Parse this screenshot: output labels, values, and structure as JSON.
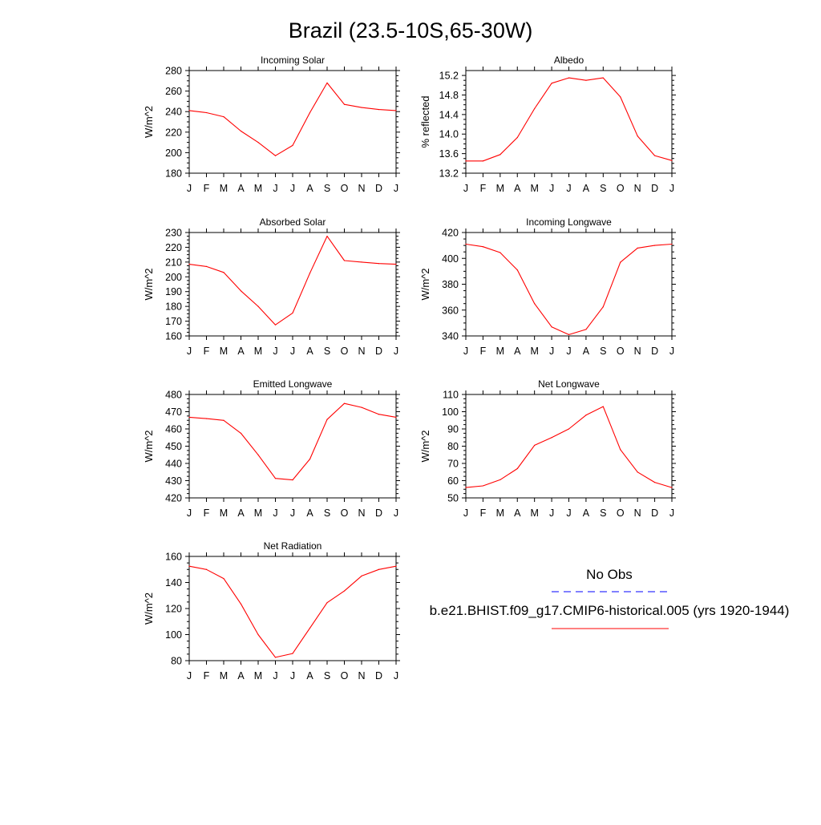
{
  "title": "Brazil (23.5-10S,65-30W)",
  "colors": {
    "model": "#ff0000",
    "obs": "#0000ff",
    "axis": "#000000"
  },
  "legend": {
    "obs_label": "No Obs",
    "model_label": "b.e21.BHIST.f09_g17.CMIP6-historical.005 (yrs 1920-1944)"
  },
  "chart_data": [
    {
      "type": "line",
      "title": "Incoming Solar",
      "xlabel": "",
      "ylabel": "W/m^2",
      "categories": [
        "J",
        "F",
        "M",
        "A",
        "M",
        "J",
        "J",
        "A",
        "S",
        "O",
        "N",
        "D",
        "J"
      ],
      "ylim": [
        180,
        280
      ],
      "yticks": [
        180,
        200,
        220,
        240,
        260,
        280
      ],
      "ytick_labels": [
        "180",
        "200",
        "220",
        "240",
        "260",
        "280"
      ],
      "series": [
        {
          "values": [
            241,
            239,
            235,
            221,
            210,
            197,
            207,
            239,
            268,
            247,
            244,
            242,
            241
          ]
        }
      ]
    },
    {
      "type": "line",
      "title": "Albedo",
      "xlabel": "",
      "ylabel": "% reflected",
      "categories": [
        "J",
        "F",
        "M",
        "A",
        "M",
        "J",
        "J",
        "A",
        "S",
        "O",
        "N",
        "D",
        "J"
      ],
      "ylim": [
        13.2,
        15.3
      ],
      "yticks": [
        13.2,
        13.6,
        14.0,
        14.4,
        14.8,
        15.2
      ],
      "ytick_labels": [
        "13.2",
        "13.6",
        "14.0",
        "14.4",
        "14.8",
        "15.2"
      ],
      "series": [
        {
          "values": [
            13.45,
            13.45,
            13.58,
            13.93,
            14.52,
            15.04,
            15.15,
            15.1,
            15.15,
            14.76,
            13.96,
            13.56,
            13.46
          ]
        }
      ]
    },
    {
      "type": "line",
      "title": "Absorbed Solar",
      "xlabel": "",
      "ylabel": "W/m^2",
      "categories": [
        "J",
        "F",
        "M",
        "A",
        "M",
        "J",
        "J",
        "A",
        "S",
        "O",
        "N",
        "D",
        "J"
      ],
      "ylim": [
        160,
        230
      ],
      "yticks": [
        160,
        170,
        180,
        190,
        200,
        210,
        220,
        230
      ],
      "ytick_labels": [
        "160",
        "170",
        "180",
        "190",
        "200",
        "210",
        "220",
        "230"
      ],
      "series": [
        {
          "values": [
            208.5,
            207,
            203,
            190.5,
            180,
            167.5,
            175.5,
            202.5,
            227.5,
            211,
            210,
            209,
            208.5
          ]
        }
      ]
    },
    {
      "type": "line",
      "title": "Incoming Longwave",
      "xlabel": "",
      "ylabel": "W/m^2",
      "categories": [
        "J",
        "F",
        "M",
        "A",
        "M",
        "J",
        "J",
        "A",
        "S",
        "O",
        "N",
        "D",
        "J"
      ],
      "ylim": [
        340,
        420
      ],
      "yticks": [
        340,
        360,
        380,
        400,
        420
      ],
      "ytick_labels": [
        "340",
        "360",
        "380",
        "400",
        "420"
      ],
      "series": [
        {
          "values": [
            411,
            409,
            404.5,
            391,
            365,
            347,
            341,
            345,
            362.5,
            397,
            408,
            410,
            411
          ]
        }
      ]
    },
    {
      "type": "line",
      "title": "Emitted Longwave",
      "xlabel": "",
      "ylabel": "W/m^2",
      "categories": [
        "J",
        "F",
        "M",
        "A",
        "M",
        "J",
        "J",
        "A",
        "S",
        "O",
        "N",
        "D",
        "J"
      ],
      "ylim": [
        420,
        480
      ],
      "yticks": [
        420,
        430,
        440,
        450,
        460,
        470,
        480
      ],
      "ytick_labels": [
        "420",
        "430",
        "440",
        "450",
        "460",
        "470",
        "480"
      ],
      "series": [
        {
          "values": [
            466.8,
            466,
            465,
            457.5,
            445,
            431.3,
            430.4,
            442.5,
            465.5,
            474.8,
            472.5,
            468.5,
            466.8
          ]
        }
      ]
    },
    {
      "type": "line",
      "title": "Net Longwave",
      "xlabel": "",
      "ylabel": "W/m^2",
      "categories": [
        "J",
        "F",
        "M",
        "A",
        "M",
        "J",
        "J",
        "A",
        "S",
        "O",
        "N",
        "D",
        "J"
      ],
      "ylim": [
        50,
        110
      ],
      "yticks": [
        50,
        60,
        70,
        80,
        90,
        100,
        110
      ],
      "ytick_labels": [
        "50",
        "60",
        "70",
        "80",
        "90",
        "100",
        "110"
      ],
      "series": [
        {
          "values": [
            56,
            57,
            60.5,
            67,
            80.5,
            85,
            90,
            98,
            103,
            78,
            65,
            59,
            56
          ]
        }
      ]
    },
    {
      "type": "line",
      "title": "Net Radiation",
      "xlabel": "",
      "ylabel": "W/m^2",
      "categories": [
        "J",
        "F",
        "M",
        "A",
        "M",
        "J",
        "J",
        "A",
        "S",
        "O",
        "N",
        "D",
        "J"
      ],
      "ylim": [
        80,
        160
      ],
      "yticks": [
        80,
        100,
        120,
        140,
        160
      ],
      "ytick_labels": [
        "80",
        "100",
        "120",
        "140",
        "160"
      ],
      "series": [
        {
          "values": [
            152.5,
            150,
            143,
            123.5,
            100,
            82.5,
            85.5,
            105,
            124.5,
            133.5,
            145,
            150,
            152.5
          ]
        }
      ]
    }
  ]
}
